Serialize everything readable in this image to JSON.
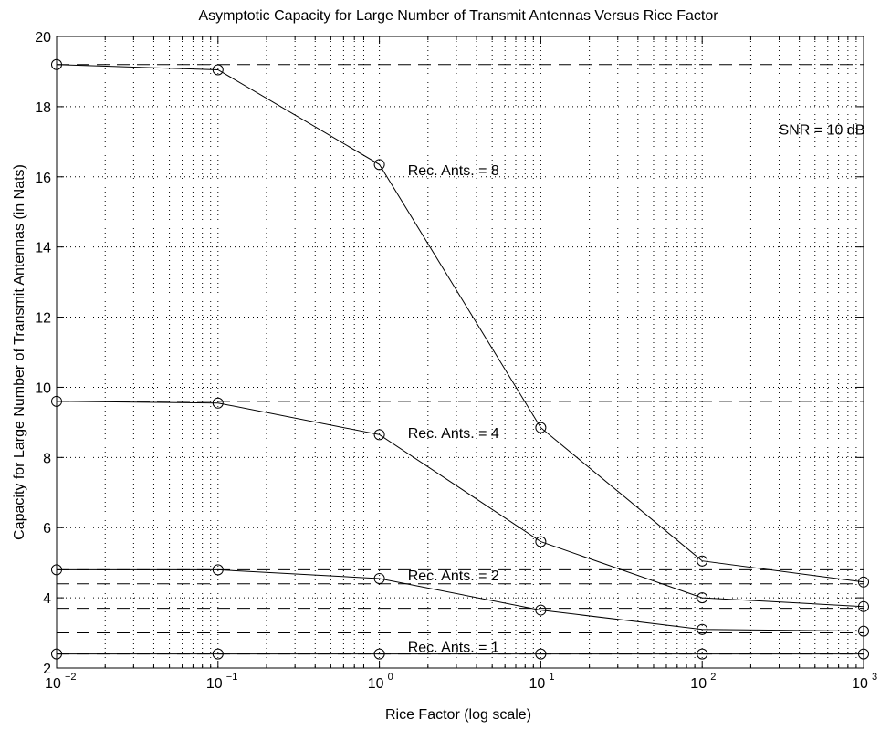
{
  "chart_data": {
    "type": "line",
    "title": "Asymptotic Capacity for Large Number of Transmit Antennas Versus Rice Factor",
    "xlabel": "Rice Factor (log scale)",
    "ylabel": "Capacity for Large Number of Transmit Antennas (in Nats)",
    "xscale": "log",
    "xlim": [
      0.01,
      1000
    ],
    "ylim": [
      2,
      20
    ],
    "grid": true,
    "x_ticks": [
      {
        "base": "10",
        "exp": "−2",
        "value": 0.01
      },
      {
        "base": "10",
        "exp": "−1",
        "value": 0.1
      },
      {
        "base": "10",
        "exp": "0",
        "value": 1
      },
      {
        "base": "10",
        "exp": "1",
        "value": 10
      },
      {
        "base": "10",
        "exp": "2",
        "value": 100
      },
      {
        "base": "10",
        "exp": "3",
        "value": 1000
      }
    ],
    "y_ticks": [
      "2",
      "4",
      "6",
      "8",
      "10",
      "12",
      "14",
      "16",
      "18",
      "20"
    ],
    "x": [
      0.01,
      0.1,
      1,
      10,
      100,
      1000
    ],
    "series": [
      {
        "label": "Rec. Ants. = 8",
        "values": [
          19.2,
          19.05,
          16.35,
          8.85,
          5.05,
          4.45
        ]
      },
      {
        "label": "Rec. Ants. = 4",
        "values": [
          9.6,
          9.55,
          8.65,
          5.6,
          4.0,
          3.75
        ]
      },
      {
        "label": "Rec. Ants. = 2",
        "values": [
          4.8,
          4.8,
          4.55,
          3.65,
          3.1,
          3.05
        ]
      },
      {
        "label": "Rec. Ants. = 1",
        "values": [
          2.4,
          2.4,
          2.4,
          2.4,
          2.4,
          2.4
        ]
      }
    ],
    "reference_lines": [
      19.2,
      9.6,
      4.8,
      4.4,
      3.7,
      3.0,
      2.4
    ],
    "annotations": [
      {
        "text": "SNR = 10 dB",
        "x": 300,
        "y": 17.2
      },
      {
        "text": "Rec. Ants. = 8",
        "x": 1.5,
        "y": 16.05
      },
      {
        "text": "Rec. Ants. = 4",
        "x": 1.5,
        "y": 8.55
      },
      {
        "text": "Rec. Ants. = 2",
        "x": 1.5,
        "y": 4.5
      },
      {
        "text": "Rec. Ants. = 1",
        "x": 1.5,
        "y": 2.45
      }
    ]
  }
}
